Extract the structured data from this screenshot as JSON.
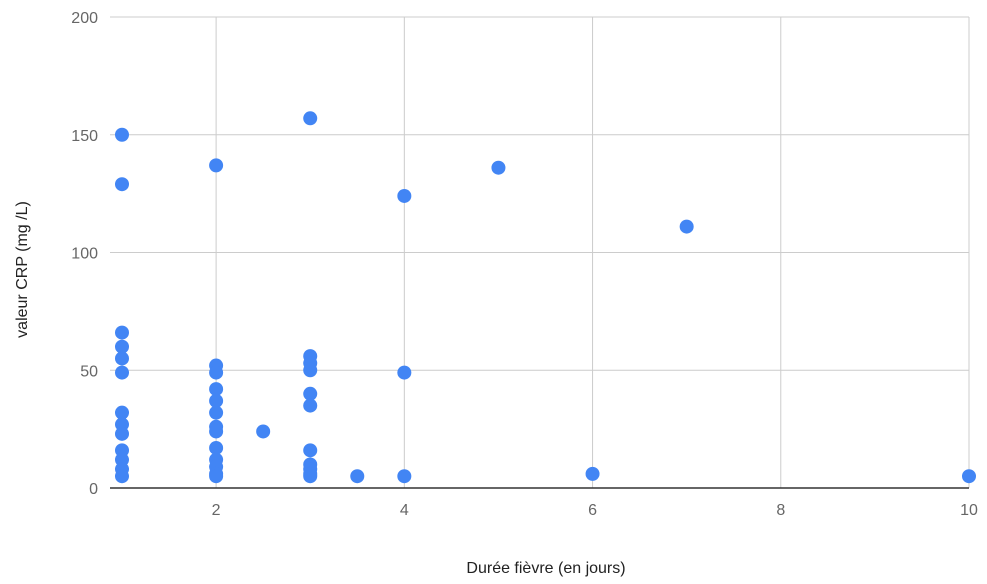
{
  "chart_data": {
    "type": "scatter",
    "title": "",
    "xlabel": "Durée fièvre (en jours)",
    "ylabel": "valeur CRP (mg /L)",
    "xlim": [
      1,
      10
    ],
    "ylim": [
      0,
      200
    ],
    "x_ticks": [
      2,
      4,
      6,
      8,
      10
    ],
    "x_tick_labels": [
      "2",
      "4",
      "6",
      "8",
      "10"
    ],
    "y_ticks": [
      0,
      50,
      100,
      150,
      200
    ],
    "y_tick_labels": [
      "0",
      "50",
      "100",
      "150",
      "200"
    ],
    "grid": true,
    "legend": "none",
    "colors": {
      "marker": "#4285f4",
      "grid": "#cccccc",
      "baseline": "#333333"
    },
    "series": [
      {
        "points": [
          [
            1,
            150
          ],
          [
            1,
            129
          ],
          [
            1,
            66
          ],
          [
            1,
            60
          ],
          [
            1,
            55
          ],
          [
            1,
            49
          ],
          [
            1,
            32
          ],
          [
            1,
            27
          ],
          [
            1,
            23
          ],
          [
            1,
            16
          ],
          [
            1,
            12
          ],
          [
            1,
            8
          ],
          [
            1,
            5
          ],
          [
            2,
            137
          ],
          [
            2,
            52
          ],
          [
            2,
            49
          ],
          [
            2,
            42
          ],
          [
            2,
            37
          ],
          [
            2,
            32
          ],
          [
            2,
            26
          ],
          [
            2,
            24
          ],
          [
            2,
            17
          ],
          [
            2,
            12
          ],
          [
            2,
            9
          ],
          [
            2,
            6
          ],
          [
            2,
            5
          ],
          [
            2.5,
            24
          ],
          [
            3,
            157
          ],
          [
            3,
            56
          ],
          [
            3,
            53
          ],
          [
            3,
            50
          ],
          [
            3,
            40
          ],
          [
            3,
            35
          ],
          [
            3,
            16
          ],
          [
            3,
            10
          ],
          [
            3,
            8
          ],
          [
            3,
            6
          ],
          [
            3,
            5
          ],
          [
            3.5,
            5
          ],
          [
            4,
            124
          ],
          [
            4,
            49
          ],
          [
            4,
            5
          ],
          [
            5,
            136
          ],
          [
            6,
            6
          ],
          [
            7,
            111
          ],
          [
            10,
            5
          ]
        ]
      }
    ]
  }
}
